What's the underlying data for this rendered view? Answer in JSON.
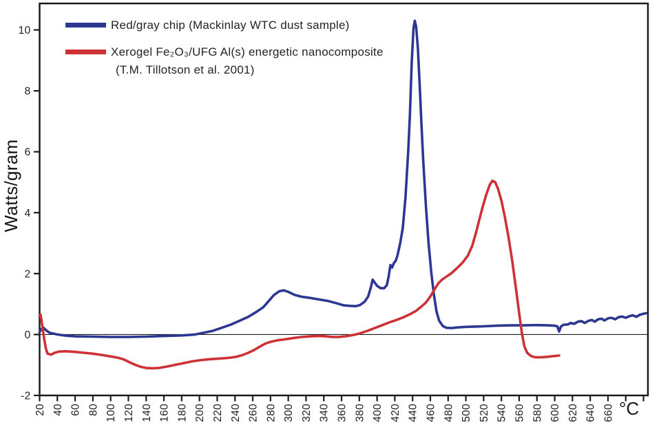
{
  "figure": {
    "background": "#ffffff",
    "ylabel": "Watts/gram",
    "xunit": "°C",
    "frame_color": "#1a1a1a",
    "legend": {
      "items": [
        {
          "label": "Red/gray chip (Mackinlay WTC dust sample)",
          "color": "#2c3792"
        },
        {
          "label": "Xerogel Fe₂O₃/UFG Al(s) energetic nanocomposite",
          "label_line2": "(T.M. Tillotson et al. 2001)",
          "color": "#cd3135"
        }
      ]
    }
  },
  "chart_data": {
    "type": "line",
    "title": "",
    "xlabel": "°C",
    "ylabel": "Watts/gram",
    "xlim": [
      20,
      705
    ],
    "ylim": [
      -2,
      10.87
    ],
    "grid": false,
    "legend_position": "top-left",
    "zero_line": 0,
    "x_ticks": [
      20,
      40,
      60,
      80,
      100,
      120,
      140,
      160,
      180,
      200,
      220,
      240,
      260,
      280,
      300,
      320,
      340,
      360,
      380,
      400,
      420,
      440,
      460,
      480,
      500,
      520,
      540,
      560,
      580,
      600,
      620,
      640,
      660,
      680,
      700
    ],
    "x_tick_labels": [
      "20",
      "40",
      "60",
      "80",
      "100",
      "120",
      "140",
      "160",
      "180",
      "200",
      "220",
      "240",
      "260",
      "280",
      "300",
      "320",
      "340",
      "360",
      "380",
      "400",
      "420",
      "440",
      "460",
      "480",
      "500",
      "520",
      "540",
      "560",
      "580",
      "600",
      "620",
      "640",
      "660",
      "",
      ""
    ],
    "y_ticks": [
      -2,
      0,
      2,
      4,
      6,
      8,
      10
    ],
    "series": [
      {
        "name": "Red/gray chip (Mackinlay WTC dust sample)",
        "color": "#2c3792",
        "points": [
          [
            20,
            0.08
          ],
          [
            22,
            0.18
          ],
          [
            24,
            0.23
          ],
          [
            27,
            0.15
          ],
          [
            31,
            0.06
          ],
          [
            40,
            0.0
          ],
          [
            50,
            -0.04
          ],
          [
            60,
            -0.06
          ],
          [
            80,
            -0.07
          ],
          [
            100,
            -0.08
          ],
          [
            120,
            -0.08
          ],
          [
            140,
            -0.07
          ],
          [
            160,
            -0.05
          ],
          [
            180,
            -0.03
          ],
          [
            195,
            0.0
          ],
          [
            205,
            0.06
          ],
          [
            215,
            0.12
          ],
          [
            225,
            0.22
          ],
          [
            235,
            0.32
          ],
          [
            245,
            0.45
          ],
          [
            255,
            0.58
          ],
          [
            265,
            0.76
          ],
          [
            272,
            0.9
          ],
          [
            278,
            1.1
          ],
          [
            284,
            1.3
          ],
          [
            290,
            1.42
          ],
          [
            295,
            1.45
          ],
          [
            300,
            1.4
          ],
          [
            307,
            1.3
          ],
          [
            315,
            1.24
          ],
          [
            325,
            1.2
          ],
          [
            335,
            1.15
          ],
          [
            345,
            1.1
          ],
          [
            355,
            1.02
          ],
          [
            362,
            0.96
          ],
          [
            370,
            0.94
          ],
          [
            376,
            0.93
          ],
          [
            381,
            0.97
          ],
          [
            386,
            1.08
          ],
          [
            390,
            1.25
          ],
          [
            393,
            1.55
          ],
          [
            395,
            1.8
          ],
          [
            397,
            1.72
          ],
          [
            400,
            1.6
          ],
          [
            404,
            1.52
          ],
          [
            408,
            1.52
          ],
          [
            411,
            1.62
          ],
          [
            413,
            1.9
          ],
          [
            415,
            2.28
          ],
          [
            417,
            2.2
          ],
          [
            419,
            2.35
          ],
          [
            421,
            2.42
          ],
          [
            423,
            2.6
          ],
          [
            426,
            3.0
          ],
          [
            429,
            3.5
          ],
          [
            432,
            4.5
          ],
          [
            435,
            6.0
          ],
          [
            437,
            7.2
          ],
          [
            439,
            8.9
          ],
          [
            441,
            10.05
          ],
          [
            442.5,
            10.3
          ],
          [
            444,
            10.1
          ],
          [
            446,
            9.4
          ],
          [
            448,
            8.2
          ],
          [
            450,
            6.9
          ],
          [
            452,
            5.7
          ],
          [
            455,
            4.2
          ],
          [
            458,
            3.0
          ],
          [
            461,
            2.05
          ],
          [
            464,
            1.3
          ],
          [
            467,
            0.75
          ],
          [
            470,
            0.45
          ],
          [
            474,
            0.28
          ],
          [
            478,
            0.22
          ],
          [
            484,
            0.21
          ],
          [
            490,
            0.23
          ],
          [
            500,
            0.25
          ],
          [
            510,
            0.26
          ],
          [
            520,
            0.27
          ],
          [
            535,
            0.29
          ],
          [
            550,
            0.3
          ],
          [
            565,
            0.3
          ],
          [
            580,
            0.31
          ],
          [
            592,
            0.3
          ],
          [
            600,
            0.29
          ],
          [
            603,
            0.27
          ],
          [
            605,
            0.1
          ],
          [
            607,
            0.26
          ],
          [
            610,
            0.32
          ],
          [
            615,
            0.33
          ],
          [
            618,
            0.38
          ],
          [
            622,
            0.35
          ],
          [
            626,
            0.42
          ],
          [
            630,
            0.44
          ],
          [
            634,
            0.38
          ],
          [
            638,
            0.45
          ],
          [
            642,
            0.48
          ],
          [
            645,
            0.42
          ],
          [
            649,
            0.5
          ],
          [
            653,
            0.52
          ],
          [
            656,
            0.46
          ],
          [
            660,
            0.53
          ],
          [
            664,
            0.55
          ],
          [
            668,
            0.5
          ],
          [
            672,
            0.57
          ],
          [
            676,
            0.59
          ],
          [
            680,
            0.55
          ],
          [
            684,
            0.6
          ],
          [
            688,
            0.63
          ],
          [
            692,
            0.58
          ],
          [
            696,
            0.65
          ],
          [
            700,
            0.68
          ],
          [
            703,
            0.7
          ]
        ]
      },
      {
        "name": "Xerogel Fe2O3/UFG Al(s) energetic nanocomposite (T.M. Tillotson et al. 2001)",
        "color": "#cd3135",
        "points": [
          [
            20,
            0.62
          ],
          [
            21,
            0.66
          ],
          [
            23,
            0.3
          ],
          [
            25,
            -0.1
          ],
          [
            27,
            -0.45
          ],
          [
            29,
            -0.63
          ],
          [
            33,
            -0.66
          ],
          [
            37,
            -0.6
          ],
          [
            42,
            -0.56
          ],
          [
            50,
            -0.55
          ],
          [
            60,
            -0.57
          ],
          [
            70,
            -0.6
          ],
          [
            80,
            -0.63
          ],
          [
            90,
            -0.67
          ],
          [
            100,
            -0.72
          ],
          [
            108,
            -0.76
          ],
          [
            115,
            -0.82
          ],
          [
            122,
            -0.92
          ],
          [
            128,
            -1.0
          ],
          [
            134,
            -1.06
          ],
          [
            140,
            -1.1
          ],
          [
            147,
            -1.11
          ],
          [
            154,
            -1.1
          ],
          [
            162,
            -1.06
          ],
          [
            172,
            -1.0
          ],
          [
            182,
            -0.94
          ],
          [
            192,
            -0.88
          ],
          [
            202,
            -0.84
          ],
          [
            212,
            -0.81
          ],
          [
            222,
            -0.79
          ],
          [
            232,
            -0.77
          ],
          [
            240,
            -0.74
          ],
          [
            248,
            -0.68
          ],
          [
            255,
            -0.6
          ],
          [
            262,
            -0.5
          ],
          [
            268,
            -0.4
          ],
          [
            274,
            -0.3
          ],
          [
            280,
            -0.24
          ],
          [
            288,
            -0.19
          ],
          [
            296,
            -0.16
          ],
          [
            305,
            -0.12
          ],
          [
            315,
            -0.08
          ],
          [
            325,
            -0.06
          ],
          [
            335,
            -0.05
          ],
          [
            342,
            -0.06
          ],
          [
            350,
            -0.08
          ],
          [
            357,
            -0.08
          ],
          [
            364,
            -0.06
          ],
          [
            370,
            -0.03
          ],
          [
            376,
            0.0
          ],
          [
            382,
            0.05
          ],
          [
            390,
            0.13
          ],
          [
            398,
            0.22
          ],
          [
            406,
            0.31
          ],
          [
            414,
            0.4
          ],
          [
            422,
            0.48
          ],
          [
            430,
            0.57
          ],
          [
            438,
            0.68
          ],
          [
            444,
            0.78
          ],
          [
            450,
            0.92
          ],
          [
            455,
            1.05
          ],
          [
            460,
            1.25
          ],
          [
            465,
            1.5
          ],
          [
            469,
            1.68
          ],
          [
            473,
            1.8
          ],
          [
            478,
            1.9
          ],
          [
            484,
            2.02
          ],
          [
            490,
            2.18
          ],
          [
            496,
            2.35
          ],
          [
            502,
            2.58
          ],
          [
            507,
            2.9
          ],
          [
            511,
            3.3
          ],
          [
            515,
            3.75
          ],
          [
            519,
            4.2
          ],
          [
            523,
            4.6
          ],
          [
            527,
            4.92
          ],
          [
            530,
            5.05
          ],
          [
            533,
            5.0
          ],
          [
            536,
            4.8
          ],
          [
            540,
            4.4
          ],
          [
            544,
            3.85
          ],
          [
            548,
            3.2
          ],
          [
            552,
            2.45
          ],
          [
            556,
            1.6
          ],
          [
            560,
            0.7
          ],
          [
            563,
            0.05
          ],
          [
            566,
            -0.4
          ],
          [
            569,
            -0.6
          ],
          [
            573,
            -0.7
          ],
          [
            578,
            -0.75
          ],
          [
            585,
            -0.75
          ],
          [
            592,
            -0.73
          ],
          [
            598,
            -0.71
          ],
          [
            605,
            -0.69
          ]
        ]
      }
    ]
  }
}
